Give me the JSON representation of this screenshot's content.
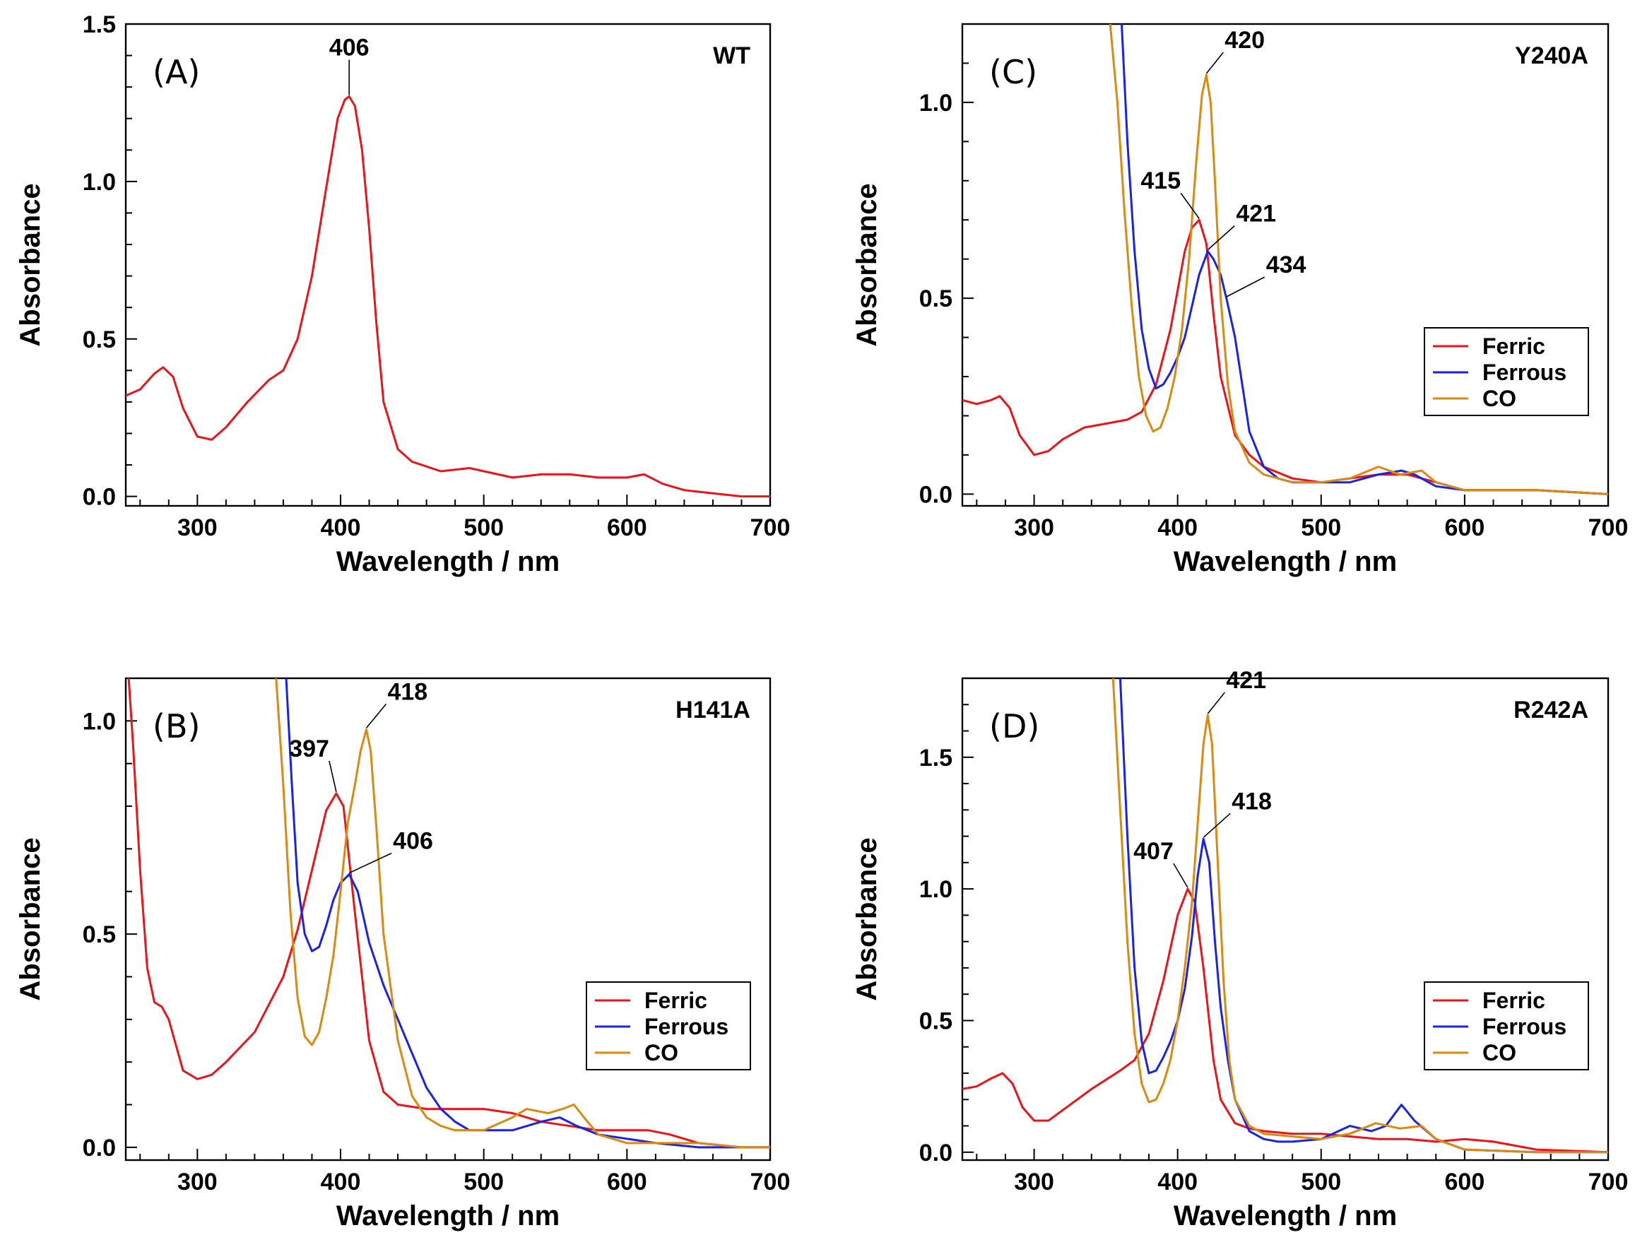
{
  "colors": {
    "Ferric": "#e8151b",
    "Ferrous": "#1a22e6",
    "CO": "#d98a10",
    "axis": "#000000"
  },
  "chart_data": [
    {
      "type": "line",
      "panel": "(A)",
      "variant": "WT",
      "xlabel": "Wavelength / nm",
      "ylabel": "Absorbance",
      "xlim": [
        250,
        700
      ],
      "ylim": [
        -0.03,
        1.5
      ],
      "xticks": [
        300,
        400,
        500,
        600,
        700
      ],
      "yticks": [
        0.0,
        0.5,
        1.0,
        1.5
      ],
      "ytick_labels": [
        "0.0",
        "0.5",
        "1.0",
        "1.5"
      ],
      "legend": [],
      "series": [
        {
          "name": "Ferric",
          "x": [
            250,
            260,
            270,
            276,
            283,
            290,
            300,
            310,
            320,
            335,
            350,
            360,
            370,
            380,
            390,
            398,
            403,
            406,
            410,
            415,
            420,
            425,
            430,
            440,
            450,
            470,
            490,
            500,
            520,
            540,
            560,
            580,
            600,
            612,
            625,
            640,
            660,
            680,
            700
          ],
          "y": [
            0.32,
            0.34,
            0.39,
            0.41,
            0.38,
            0.28,
            0.19,
            0.18,
            0.22,
            0.3,
            0.37,
            0.4,
            0.5,
            0.7,
            0.98,
            1.2,
            1.26,
            1.27,
            1.24,
            1.1,
            0.85,
            0.55,
            0.3,
            0.15,
            0.11,
            0.08,
            0.09,
            0.08,
            0.06,
            0.07,
            0.07,
            0.06,
            0.06,
            0.07,
            0.04,
            0.02,
            0.01,
            0.0,
            0.0
          ]
        }
      ],
      "annotations": [
        {
          "text": "406",
          "x": 406,
          "y": 1.27
        }
      ]
    },
    {
      "type": "line",
      "panel": "(B)",
      "variant": "H141A",
      "xlabel": "Wavelength / nm",
      "ylabel": "Absorbance",
      "xlim": [
        250,
        700
      ],
      "ylim": [
        -0.03,
        1.1
      ],
      "xticks": [
        300,
        400,
        500,
        600,
        700
      ],
      "yticks": [
        0.0,
        0.5,
        1.0
      ],
      "ytick_labels": [
        "0.0",
        "0.5",
        "1.0"
      ],
      "legend": [
        "Ferric",
        "Ferrous",
        "CO"
      ],
      "series": [
        {
          "name": "Ferric",
          "x": [
            252,
            255,
            260,
            265,
            270,
            275,
            280,
            285,
            290,
            300,
            310,
            320,
            340,
            360,
            370,
            380,
            390,
            397,
            402,
            410,
            420,
            430,
            440,
            460,
            480,
            500,
            520,
            540,
            560,
            580,
            600,
            615,
            630,
            650,
            680,
            700
          ],
          "y": [
            1.1,
            0.95,
            0.65,
            0.42,
            0.34,
            0.33,
            0.3,
            0.24,
            0.18,
            0.16,
            0.17,
            0.2,
            0.27,
            0.4,
            0.51,
            0.65,
            0.79,
            0.83,
            0.8,
            0.55,
            0.25,
            0.13,
            0.1,
            0.09,
            0.09,
            0.09,
            0.08,
            0.06,
            0.05,
            0.04,
            0.04,
            0.04,
            0.03,
            0.01,
            0.0,
            0.0
          ]
        },
        {
          "name": "Ferrous",
          "x": [
            362,
            366,
            370,
            375,
            380,
            385,
            390,
            395,
            400,
            406,
            412,
            420,
            430,
            440,
            450,
            460,
            470,
            480,
            490,
            500,
            520,
            540,
            553,
            565,
            580,
            600,
            620,
            650,
            680,
            700
          ],
          "y": [
            1.1,
            0.85,
            0.62,
            0.5,
            0.46,
            0.47,
            0.52,
            0.58,
            0.62,
            0.64,
            0.6,
            0.48,
            0.38,
            0.3,
            0.22,
            0.14,
            0.09,
            0.06,
            0.04,
            0.04,
            0.04,
            0.06,
            0.07,
            0.05,
            0.03,
            0.02,
            0.01,
            0.0,
            0.0,
            0.0
          ]
        },
        {
          "name": "CO",
          "x": [
            355,
            360,
            365,
            370,
            375,
            380,
            385,
            390,
            395,
            400,
            405,
            410,
            414,
            418,
            421,
            425,
            430,
            440,
            450,
            460,
            470,
            480,
            500,
            520,
            530,
            545,
            555,
            563,
            570,
            580,
            600,
            620,
            650,
            680,
            700
          ],
          "y": [
            1.1,
            0.85,
            0.55,
            0.35,
            0.26,
            0.24,
            0.27,
            0.35,
            0.45,
            0.6,
            0.76,
            0.85,
            0.93,
            0.98,
            0.93,
            0.75,
            0.5,
            0.25,
            0.12,
            0.07,
            0.05,
            0.04,
            0.04,
            0.07,
            0.09,
            0.08,
            0.09,
            0.1,
            0.07,
            0.03,
            0.01,
            0.01,
            0.01,
            0.0,
            0.0
          ]
        }
      ],
      "annotations": [
        {
          "text": "397",
          "x": 397,
          "y": 0.83
        },
        {
          "text": "418",
          "x": 418,
          "y": 0.98
        },
        {
          "text": "406",
          "x": 406,
          "y": 0.64
        }
      ]
    },
    {
      "type": "line",
      "panel": "(C)",
      "variant": "Y240A",
      "xlabel": "Wavelength / nm",
      "ylabel": "Absorbance",
      "xlim": [
        250,
        700
      ],
      "ylim": [
        -0.03,
        1.2
      ],
      "xticks": [
        300,
        400,
        500,
        600,
        700
      ],
      "yticks": [
        0.0,
        0.5,
        1.0
      ],
      "ytick_labels": [
        "0.0",
        "0.5",
        "1.0"
      ],
      "legend": [
        "Ferric",
        "Ferrous",
        "CO"
      ],
      "series": [
        {
          "name": "Ferric",
          "x": [
            250,
            260,
            270,
            276,
            283,
            290,
            300,
            310,
            320,
            335,
            350,
            365,
            375,
            385,
            395,
            405,
            410,
            415,
            420,
            425,
            430,
            440,
            450,
            460,
            480,
            500,
            520,
            540,
            560,
            580,
            600,
            650,
            700
          ],
          "y": [
            0.24,
            0.23,
            0.24,
            0.25,
            0.22,
            0.15,
            0.1,
            0.11,
            0.14,
            0.17,
            0.18,
            0.19,
            0.21,
            0.28,
            0.42,
            0.62,
            0.68,
            0.7,
            0.64,
            0.46,
            0.3,
            0.15,
            0.1,
            0.07,
            0.04,
            0.03,
            0.04,
            0.05,
            0.05,
            0.03,
            0.01,
            0.01,
            0.0
          ]
        },
        {
          "name": "Ferrous",
          "x": [
            361,
            365,
            370,
            375,
            380,
            385,
            390,
            395,
            400,
            405,
            410,
            415,
            421,
            425,
            430,
            434,
            440,
            445,
            450,
            460,
            470,
            480,
            500,
            520,
            540,
            556,
            565,
            580,
            600,
            650,
            700
          ],
          "y": [
            1.2,
            0.9,
            0.62,
            0.42,
            0.32,
            0.27,
            0.28,
            0.31,
            0.35,
            0.4,
            0.48,
            0.56,
            0.62,
            0.6,
            0.56,
            0.5,
            0.4,
            0.28,
            0.16,
            0.07,
            0.04,
            0.03,
            0.03,
            0.03,
            0.05,
            0.06,
            0.05,
            0.02,
            0.01,
            0.01,
            0.0
          ]
        },
        {
          "name": "CO",
          "x": [
            353,
            358,
            363,
            368,
            373,
            378,
            383,
            388,
            393,
            398,
            403,
            408,
            413,
            417,
            420,
            423,
            426,
            430,
            435,
            440,
            450,
            460,
            480,
            500,
            520,
            540,
            555,
            570,
            580,
            600,
            650,
            700
          ],
          "y": [
            1.2,
            1.0,
            0.72,
            0.48,
            0.3,
            0.2,
            0.16,
            0.17,
            0.22,
            0.3,
            0.42,
            0.6,
            0.85,
            1.02,
            1.07,
            1.0,
            0.8,
            0.5,
            0.28,
            0.16,
            0.08,
            0.05,
            0.03,
            0.03,
            0.04,
            0.07,
            0.05,
            0.06,
            0.03,
            0.01,
            0.01,
            0.0
          ]
        }
      ],
      "annotations": [
        {
          "text": "420",
          "x": 420,
          "y": 1.07
        },
        {
          "text": "415",
          "x": 415,
          "y": 0.7
        },
        {
          "text": "421",
          "x": 421,
          "y": 0.62
        },
        {
          "text": "434",
          "x": 434,
          "y": 0.5
        }
      ]
    },
    {
      "type": "line",
      "panel": "(D)",
      "variant": "R242A",
      "xlabel": "Wavelength / nm",
      "ylabel": "Absorbance",
      "xlim": [
        250,
        700
      ],
      "ylim": [
        -0.03,
        1.8
      ],
      "xticks": [
        300,
        400,
        500,
        600,
        700
      ],
      "yticks": [
        0.0,
        0.5,
        1.0,
        1.5
      ],
      "ytick_labels": [
        "0.0",
        "0.5",
        "1.0",
        "1.5"
      ],
      "legend": [
        "Ferric",
        "Ferrous",
        "CO"
      ],
      "series": [
        {
          "name": "Ferric",
          "x": [
            250,
            260,
            270,
            278,
            285,
            292,
            300,
            310,
            320,
            340,
            360,
            370,
            380,
            390,
            400,
            407,
            412,
            418,
            425,
            430,
            440,
            450,
            460,
            480,
            500,
            520,
            540,
            560,
            580,
            600,
            620,
            650,
            700
          ],
          "y": [
            0.24,
            0.25,
            0.28,
            0.3,
            0.26,
            0.17,
            0.12,
            0.12,
            0.16,
            0.24,
            0.31,
            0.35,
            0.45,
            0.65,
            0.9,
            1.0,
            0.95,
            0.7,
            0.35,
            0.2,
            0.11,
            0.09,
            0.08,
            0.07,
            0.07,
            0.06,
            0.05,
            0.05,
            0.04,
            0.05,
            0.04,
            0.01,
            0.0
          ]
        },
        {
          "name": "Ferrous",
          "x": [
            360,
            365,
            370,
            375,
            380,
            385,
            390,
            395,
            400,
            405,
            410,
            414,
            418,
            422,
            426,
            430,
            435,
            440,
            450,
            460,
            470,
            480,
            500,
            520,
            535,
            545,
            556,
            565,
            580,
            600,
            650,
            700
          ],
          "y": [
            1.8,
            1.2,
            0.7,
            0.42,
            0.3,
            0.31,
            0.36,
            0.42,
            0.5,
            0.62,
            0.82,
            1.05,
            1.19,
            1.1,
            0.8,
            0.55,
            0.35,
            0.2,
            0.08,
            0.05,
            0.04,
            0.04,
            0.05,
            0.1,
            0.08,
            0.1,
            0.18,
            0.12,
            0.05,
            0.01,
            0.0,
            0.0
          ]
        },
        {
          "name": "CO",
          "x": [
            355,
            360,
            365,
            370,
            375,
            380,
            385,
            390,
            395,
            400,
            405,
            410,
            414,
            418,
            421,
            424,
            428,
            432,
            436,
            440,
            450,
            460,
            480,
            500,
            520,
            538,
            555,
            570,
            580,
            600,
            650,
            700
          ],
          "y": [
            1.8,
            1.3,
            0.8,
            0.45,
            0.26,
            0.19,
            0.2,
            0.26,
            0.35,
            0.5,
            0.7,
            0.95,
            1.25,
            1.55,
            1.66,
            1.55,
            1.1,
            0.65,
            0.35,
            0.2,
            0.1,
            0.07,
            0.06,
            0.05,
            0.07,
            0.11,
            0.09,
            0.1,
            0.05,
            0.01,
            0.0,
            0.0
          ]
        }
      ],
      "annotations": [
        {
          "text": "421",
          "x": 421,
          "y": 1.66
        },
        {
          "text": "418",
          "x": 418,
          "y": 1.19
        },
        {
          "text": "407",
          "x": 407,
          "y": 1.0
        }
      ]
    }
  ]
}
